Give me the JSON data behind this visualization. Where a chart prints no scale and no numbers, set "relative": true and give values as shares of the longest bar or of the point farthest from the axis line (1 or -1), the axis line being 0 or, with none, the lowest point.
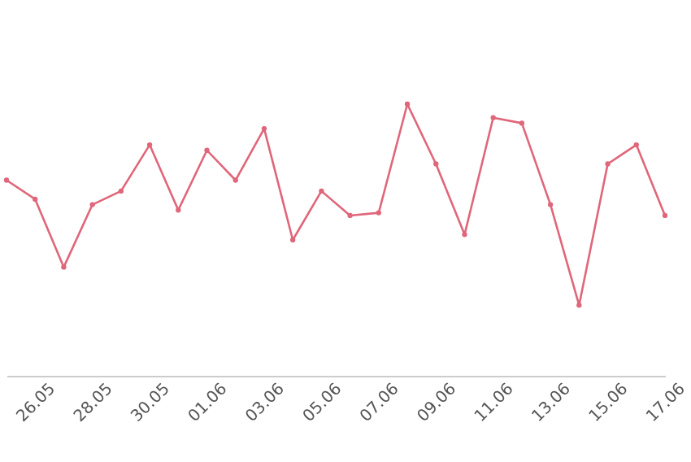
{
  "chart_data": {
    "type": "line",
    "relative": true,
    "marker": "circle",
    "line_style": "solid",
    "categories": [
      null,
      "26.05",
      null,
      "28.05",
      null,
      "30.05",
      null,
      "01.06",
      null,
      "03.06",
      null,
      "05.06",
      null,
      "07.06",
      null,
      "09.06",
      null,
      "11.06",
      null,
      "13.06",
      null,
      "15.06",
      null,
      "17.06"
    ],
    "series": [
      {
        "color": "#e0667a",
        "values": [
          0.72,
          0.65,
          0.4,
          0.63,
          0.68,
          0.85,
          0.61,
          0.83,
          0.72,
          0.91,
          0.5,
          0.68,
          0.59,
          0.6,
          1,
          0.78,
          0.52,
          0.95,
          0.93,
          0.63,
          0.26,
          0.78,
          0.85,
          0.59
        ]
      }
    ]
  }
}
